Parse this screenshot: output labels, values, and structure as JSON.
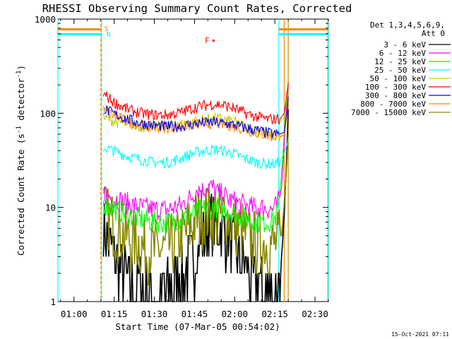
{
  "chart_data": {
    "type": "line",
    "title": "RHESSI Observing Summary Count Rates, Corrected",
    "xlabel": "Start Time (07-Mar-05 00:54:02)",
    "ylabel_main": "Corrected Count Rate (s",
    "ylabel_sup1": "-1",
    "ylabel_mid": " detector",
    "ylabel_sup2": "-1",
    "ylabel_end": ")",
    "y_scale": "log",
    "ylim": [
      1,
      1000
    ],
    "xlim_min": [
      54.0,
      155.0
    ],
    "x_ticks": [
      {
        "min": 60,
        "label": "01:00"
      },
      {
        "min": 75,
        "label": "01:15"
      },
      {
        "min": 90,
        "label": "01:30"
      },
      {
        "min": 105,
        "label": "01:45"
      },
      {
        "min": 120,
        "label": "02:00"
      },
      {
        "min": 135,
        "label": "02:15"
      },
      {
        "min": 150,
        "label": "02:30"
      }
    ],
    "y_ticks": [
      {
        "value": 1,
        "label": "1"
      },
      {
        "value": 10,
        "label": "10"
      },
      {
        "value": 100,
        "label": "100"
      },
      {
        "value": 1000,
        "label": "1000"
      }
    ],
    "legend_header": [
      "Det 1,3,4,5,6,9,",
      "Att 0"
    ],
    "legend_position": "right, outside plot",
    "series": [
      {
        "name": "3 - 6 keV",
        "color": "#000000",
        "x": [
          71,
          73,
          75,
          77,
          79,
          81,
          84,
          87,
          90,
          93,
          96,
          99,
          102,
          105,
          108,
          111,
          114,
          117,
          120,
          123,
          126,
          129,
          132,
          134,
          136,
          137.5,
          138.5,
          139.5,
          140
        ],
        "y": [
          6,
          4.2,
          3,
          2.4,
          2,
          1.6,
          1.5,
          1.3,
          1.2,
          1.2,
          1.4,
          1.7,
          2.2,
          3.2,
          4.5,
          7,
          6.5,
          5,
          3.5,
          2.6,
          2,
          1.6,
          1.4,
          1.3,
          1.5,
          2.6,
          8,
          40,
          110
        ]
      },
      {
        "name": "6 - 12 keV",
        "color": "#ff00ff",
        "x": [
          71,
          75,
          80,
          85,
          90,
          95,
          100,
          104,
          106,
          108,
          110,
          112,
          114,
          116,
          118,
          122,
          126,
          130,
          134,
          136,
          137.5,
          138.5,
          139.5,
          140
        ],
        "y": [
          14,
          12.5,
          11,
          10,
          9.5,
          9.5,
          10.5,
          13,
          16,
          15,
          17,
          16,
          14,
          13.5,
          12,
          11,
          10,
          10,
          9.5,
          10.5,
          16,
          45,
          130,
          200
        ]
      },
      {
        "name": "12 - 25 keV",
        "color": "#00ff00",
        "x": [
          71,
          75,
          80,
          85,
          90,
          95,
          100,
          104,
          108,
          112,
          116,
          120,
          124,
          128,
          132,
          135,
          136.5,
          138,
          139,
          140
        ],
        "y": [
          11,
          9.5,
          8.5,
          7.5,
          7,
          7,
          7.5,
          8.5,
          9.5,
          10,
          9.5,
          8.5,
          7.5,
          7,
          7,
          7.5,
          10,
          35,
          110,
          170
        ]
      },
      {
        "name": "25 - 50 keV",
        "color": "#00ffff",
        "x": [
          71,
          75,
          80,
          85,
          90,
          95,
          100,
          104,
          108,
          112,
          116,
          120,
          124,
          128,
          132,
          135,
          137,
          138.5,
          139.5,
          140
        ],
        "y": [
          43,
          40,
          35,
          32,
          30,
          30,
          33,
          37,
          40,
          41,
          40,
          37,
          33,
          30,
          29,
          29,
          31,
          38,
          46,
          54
        ]
      },
      {
        "name": "50 - 100 keV",
        "color": "#cccc00",
        "x": [
          71,
          75,
          80,
          85,
          90,
          95,
          100,
          104,
          108,
          112,
          116,
          120,
          124,
          128,
          132,
          135,
          137,
          138.5,
          139.5,
          140
        ],
        "y": [
          90,
          82,
          76,
          72,
          72,
          73,
          76,
          80,
          85,
          88,
          86,
          81,
          72,
          65,
          60,
          57,
          56,
          58,
          95,
          150
        ]
      },
      {
        "name": "100 - 300 keV",
        "color": "#ff0000",
        "x": [
          71,
          75,
          80,
          85,
          90,
          95,
          100,
          104,
          108,
          112,
          116,
          120,
          124,
          128,
          132,
          135,
          137,
          138.5,
          139.5,
          140
        ],
        "y": [
          160,
          130,
          110,
          100,
          96,
          96,
          102,
          112,
          120,
          125,
          122,
          112,
          100,
          92,
          87,
          86,
          88,
          100,
          160,
          210
        ]
      },
      {
        "name": "300 - 800 keV",
        "color": "#0000ff",
        "x": [
          71,
          75,
          80,
          85,
          90,
          95,
          100,
          104,
          108,
          112,
          116,
          120,
          124,
          128,
          132,
          135,
          137,
          138.5,
          139.5,
          140
        ],
        "y": [
          112,
          98,
          86,
          78,
          74,
          72,
          73,
          76,
          79,
          80,
          78,
          75,
          70,
          66,
          62,
          60,
          60,
          63,
          100,
          150
        ]
      },
      {
        "name": "800 - 7000 keV",
        "color": "#ff8800",
        "x": [
          71,
          75,
          80,
          85,
          90,
          95,
          100,
          104,
          108,
          112,
          116,
          120,
          124,
          128,
          132,
          135,
          137,
          138.5,
          139.5,
          140
        ],
        "y": [
          108,
          94,
          82,
          75,
          71,
          70,
          72,
          75,
          77,
          78,
          76,
          72,
          67,
          62,
          58,
          56,
          56,
          60,
          95,
          140
        ]
      },
      {
        "name": "7000 - 15000 keV",
        "color": "#888800",
        "x": [
          71,
          73,
          76,
          79,
          82,
          86,
          90,
          94,
          98,
          102,
          106,
          110,
          112,
          114,
          116,
          118,
          120,
          123,
          126,
          130,
          134,
          136,
          137.5,
          138.5,
          139.5,
          140
        ],
        "y": [
          9,
          7.5,
          6,
          5,
          4.4,
          3.8,
          3.5,
          3.6,
          4.2,
          5.5,
          7.5,
          8.5,
          8,
          7.5,
          8.8,
          7.5,
          6.5,
          5.5,
          4.6,
          4.2,
          4,
          4.2,
          5,
          11,
          30,
          60
        ]
      }
    ],
    "markers": [
      {
        "label": "S",
        "color": "#ff8800"
      },
      {
        "label": "N",
        "color": "#00ffff"
      },
      {
        "label": "F",
        "color": "#ff0000"
      }
    ],
    "flags": {
      "saa_color": "#ff8800",
      "night_color": "#00ffff",
      "flare_color": "#ff0000"
    },
    "vertical_lines": [
      {
        "x": 54.0,
        "color": "#00ffff"
      },
      {
        "x": 70.0,
        "color": "#ff8800"
      },
      {
        "x": 70.3,
        "color": "#00ffff"
      },
      {
        "x": 136.5,
        "color": "#00ffff"
      },
      {
        "x": 138.5,
        "color": "#ff8800"
      },
      {
        "x": 140.0,
        "color": "#cc8800"
      },
      {
        "x": 154.8,
        "color": "#ff8800"
      },
      {
        "x": 155.0,
        "color": "#00ffff"
      }
    ],
    "saa_intervals": [
      [
        54.0,
        70.0
      ],
      [
        136.5,
        155.0
      ]
    ],
    "night_intervals": [
      [
        54.0,
        70.3
      ],
      [
        136.5,
        155.0
      ]
    ],
    "flare_marker_x": 112.0,
    "footer": "15-Oct-2021 07:11",
    "grid": false
  }
}
